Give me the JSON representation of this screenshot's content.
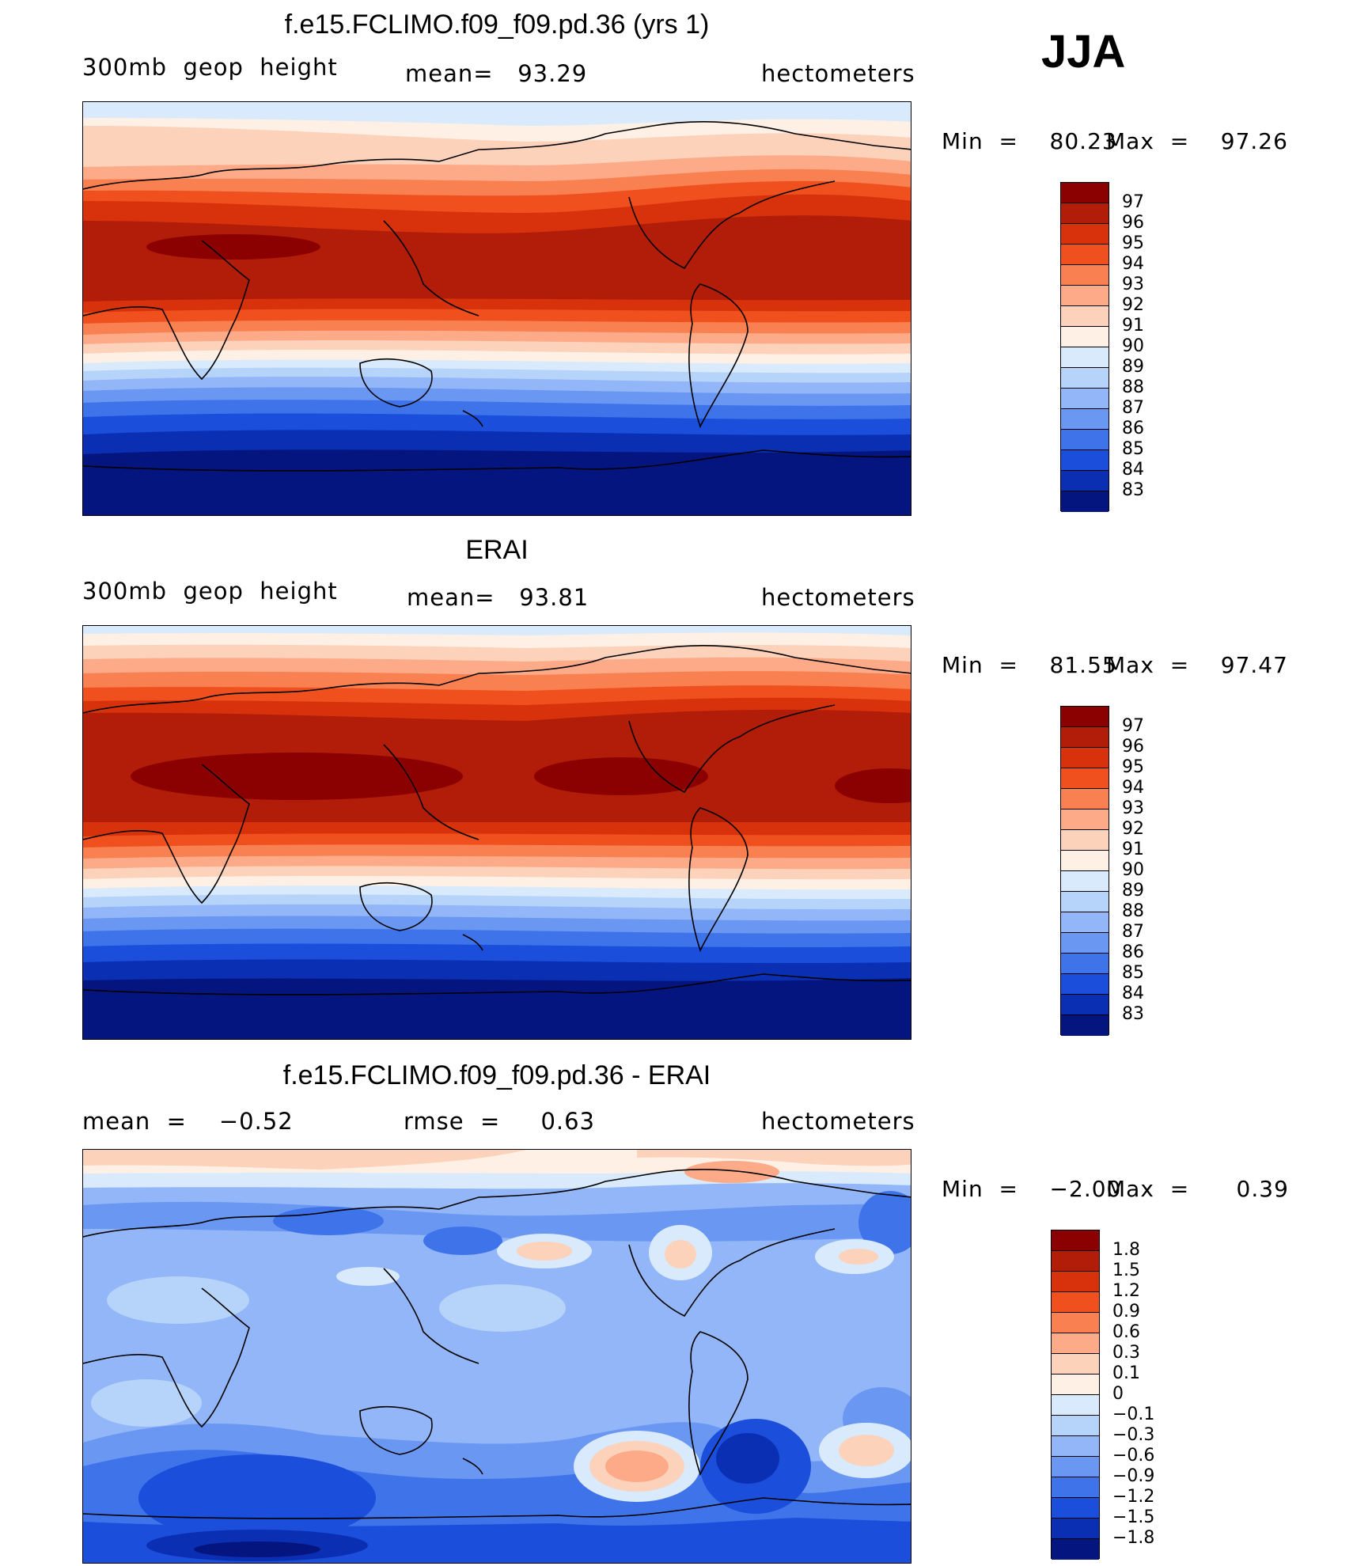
{
  "season": "JJA",
  "panels": [
    {
      "id": "model",
      "title": "f.e15.FCLIMO.f09_f09.pd.36 (yrs 1)",
      "left_text": "300mb  geop  height",
      "center_text": "mean=   93.29",
      "units": "hectometers",
      "min_text": "Min  =    80.23",
      "max_text": "Max  =    97.26",
      "colorbar_labels": [
        "97",
        "96",
        "95",
        "94",
        "93",
        "92",
        "91",
        "90",
        "89",
        "88",
        "87",
        "86",
        "85",
        "84",
        "83"
      ],
      "colorbar_colors": [
        "#8b0000",
        "#b21d0a",
        "#d8320c",
        "#f0501e",
        "#f98050",
        "#fdaa88",
        "#fcd2bb",
        "#fef0e4",
        "#d8eafb",
        "#b6d4fa",
        "#92b6f7",
        "#6a97f2",
        "#3f73ea",
        "#1a4edb",
        "#0a2fb2",
        "#05157f"
      ]
    },
    {
      "id": "obs",
      "title": "ERAI",
      "left_text": "300mb  geop  height",
      "center_text": "mean=   93.81",
      "units": "hectometers",
      "min_text": "Min  =    81.55",
      "max_text": "Max  =    97.47",
      "colorbar_labels": [
        "97",
        "96",
        "95",
        "94",
        "93",
        "92",
        "91",
        "90",
        "89",
        "88",
        "87",
        "86",
        "85",
        "84",
        "83"
      ],
      "colorbar_colors": [
        "#8b0000",
        "#b21d0a",
        "#d8320c",
        "#f0501e",
        "#f98050",
        "#fdaa88",
        "#fcd2bb",
        "#fef0e4",
        "#d8eafb",
        "#b6d4fa",
        "#92b6f7",
        "#6a97f2",
        "#3f73ea",
        "#1a4edb",
        "#0a2fb2",
        "#05157f"
      ]
    },
    {
      "id": "diff",
      "title": "f.e15.FCLIMO.f09_f09.pd.36 - ERAI",
      "left_text": "mean  =    −0.52",
      "center_text": "rmse  =     0.63",
      "units": "hectometers",
      "min_text": "Min  =    −2.00",
      "max_text": "Max  =      0.39",
      "colorbar_labels": [
        "1.8",
        "1.5",
        "1.2",
        "0.9",
        "0.6",
        "0.3",
        "0.1",
        "0",
        "−0.1",
        "−0.3",
        "−0.6",
        "−0.9",
        "−1.2",
        "−1.5",
        "−1.8"
      ],
      "colorbar_colors": [
        "#8b0000",
        "#b21d0a",
        "#d8320c",
        "#f0501e",
        "#f98050",
        "#fdaa88",
        "#fcd2bb",
        "#fef0e4",
        "#d8eafb",
        "#b6d4fa",
        "#92b6f7",
        "#6a97f2",
        "#3f73ea",
        "#1a4edb",
        "#0a2fb2",
        "#05157f"
      ]
    }
  ]
}
